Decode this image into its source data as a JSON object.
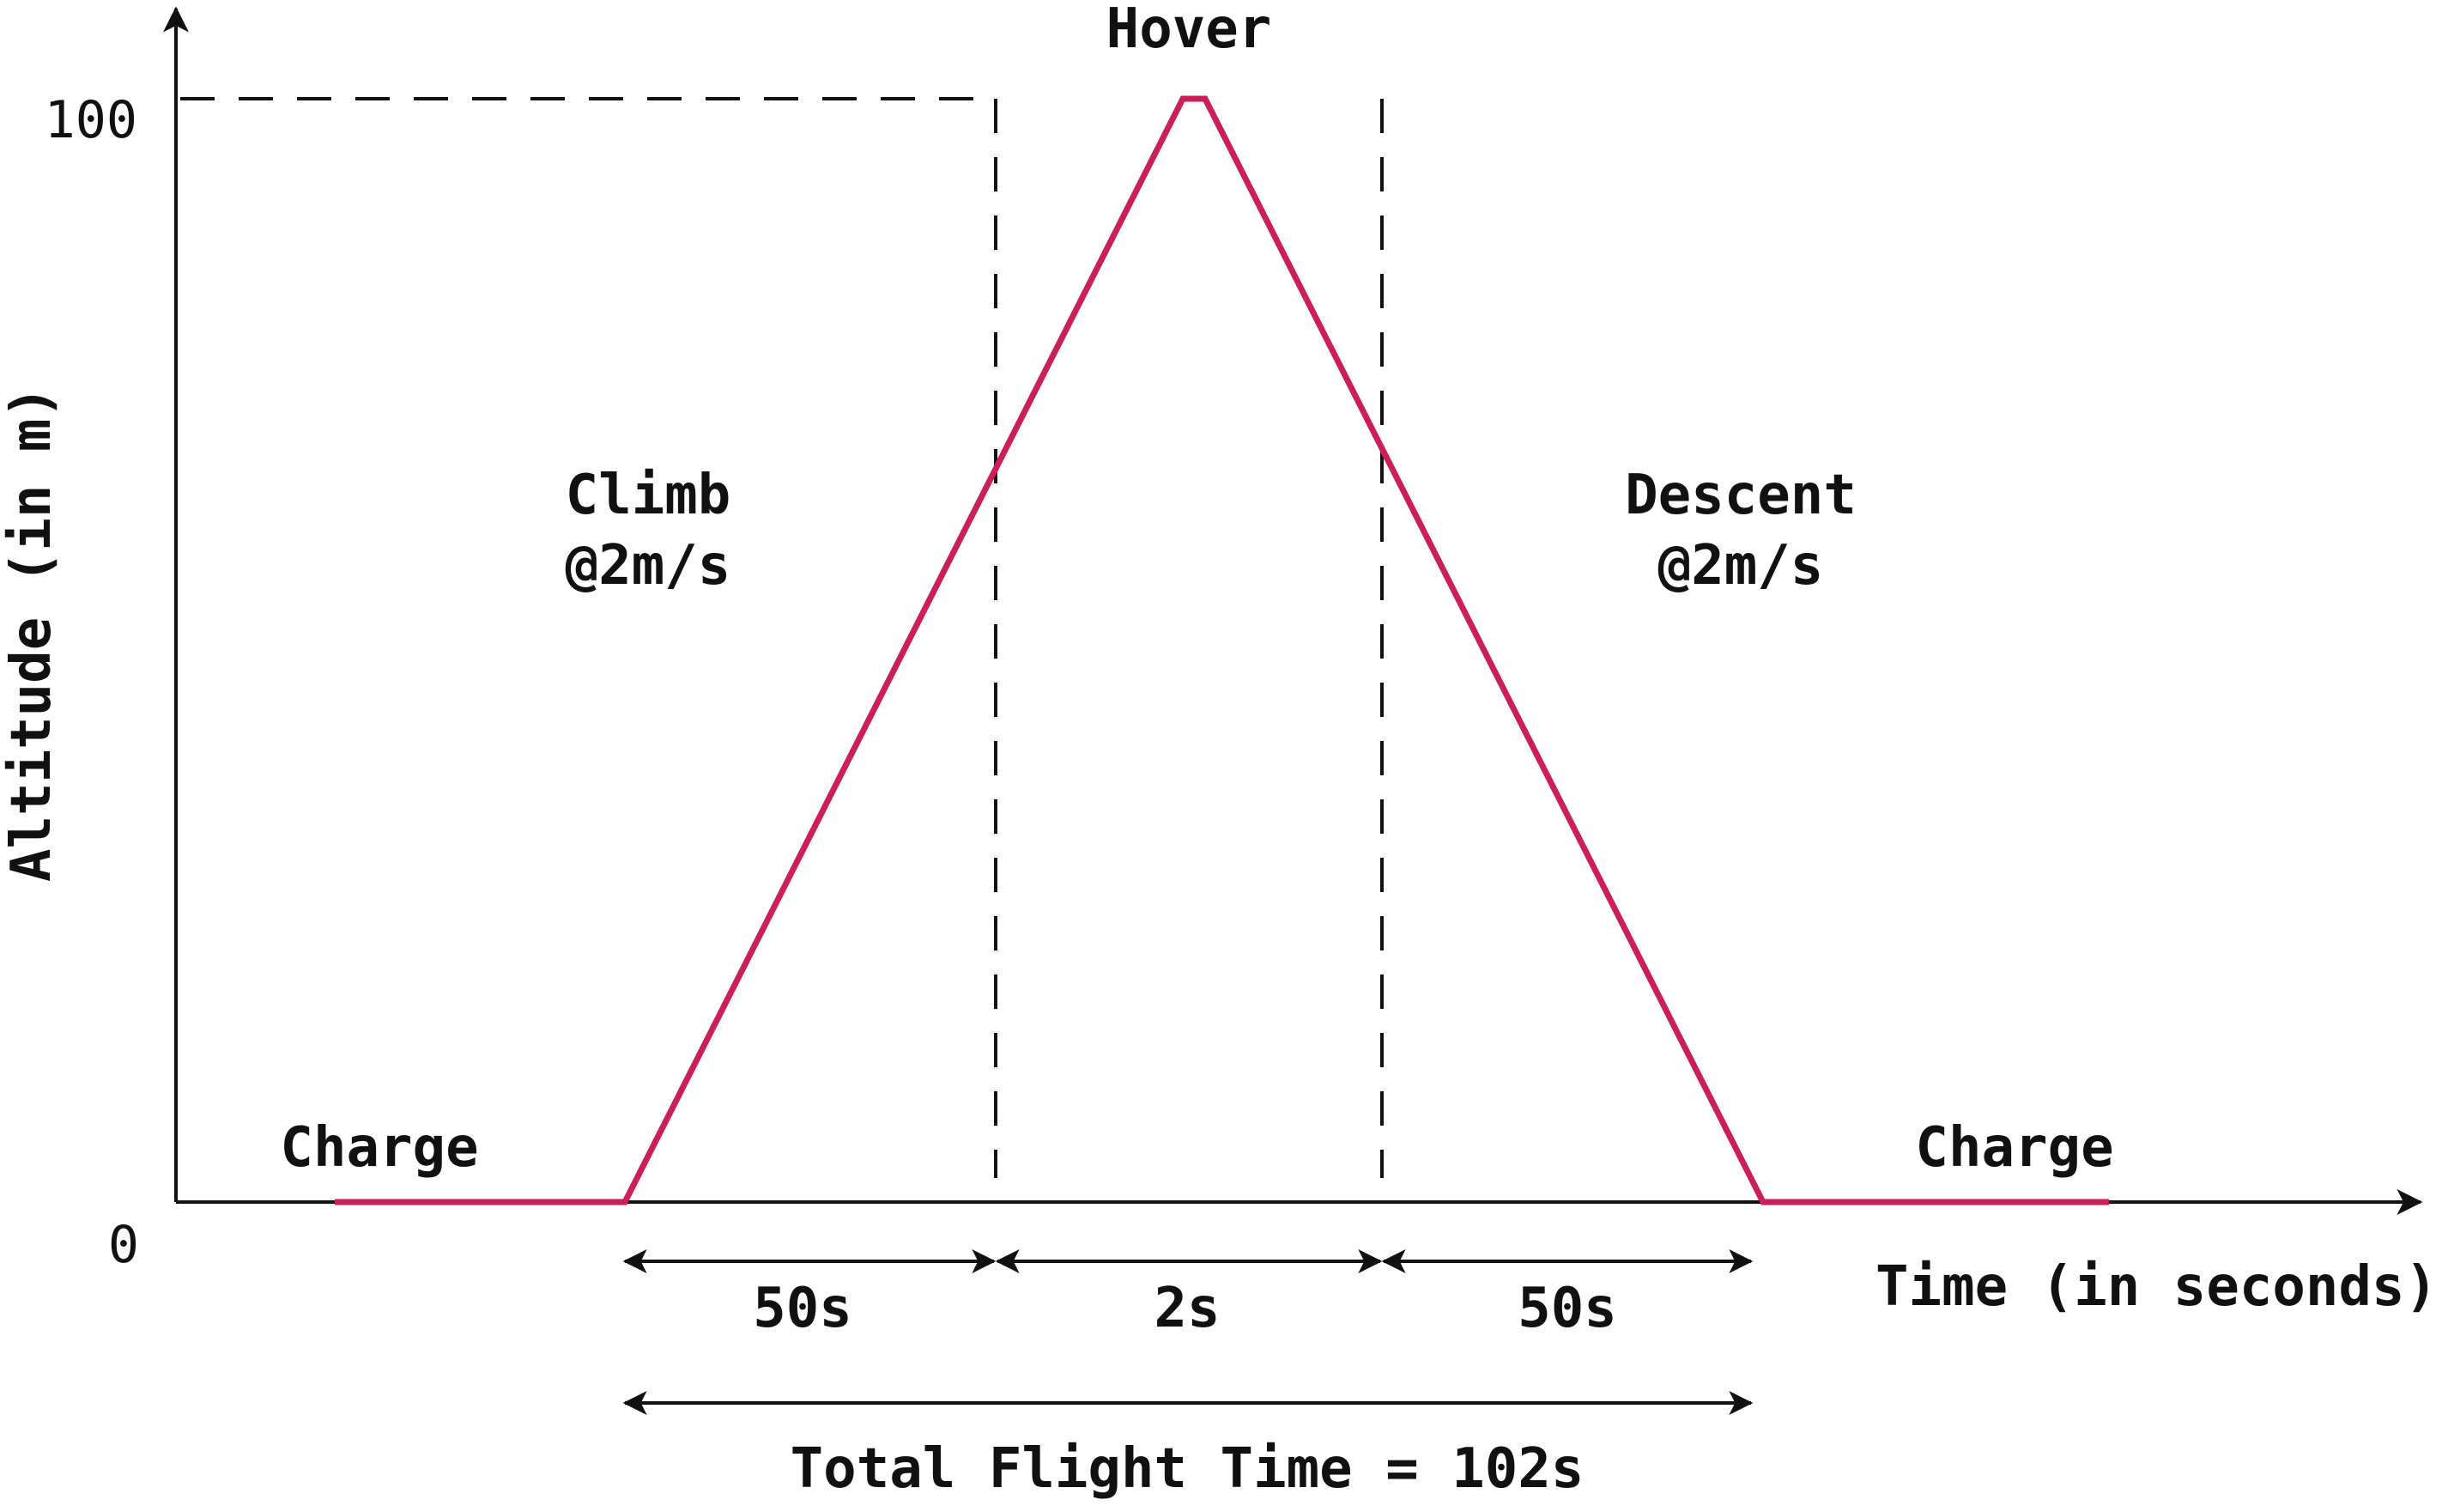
{
  "colors": {
    "profile": "#cc1f5a",
    "ink": "#111111",
    "background": "#ffffff"
  },
  "axes": {
    "y_label": "Altitude (in m)",
    "x_label": "Time (in seconds)",
    "y_ticks": [
      "0",
      "100"
    ]
  },
  "phases": {
    "hover": "Hover",
    "climb": {
      "name": "Climb",
      "rate": "@2m/s"
    },
    "descent": {
      "name": "Descent",
      "rate": "@2m/s"
    },
    "charge_left": "Charge",
    "charge_right": "Charge"
  },
  "durations": {
    "climb": "50s",
    "hover": "2s",
    "descent": "50s",
    "total": "Total Flight Time = 102s"
  },
  "profile_points": [
    {
      "t": -26,
      "alt": 0
    },
    {
      "t": 0,
      "alt": 0
    },
    {
      "t": 50,
      "alt": 100
    },
    {
      "t": 52,
      "alt": 100
    },
    {
      "t": 102,
      "alt": 0
    },
    {
      "t": 133,
      "alt": 0
    }
  ]
}
